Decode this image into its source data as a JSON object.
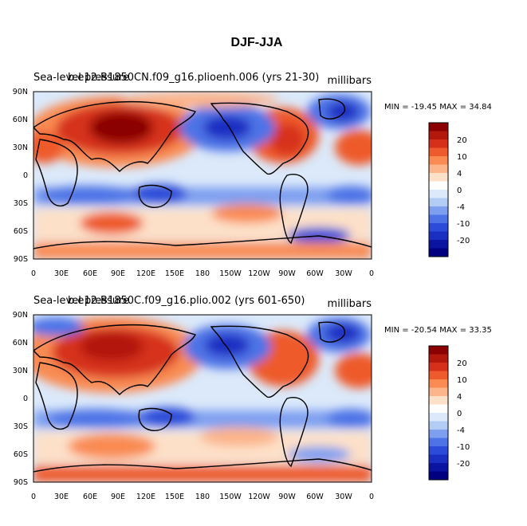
{
  "title": "DJF-JJA",
  "units": "millibars",
  "panels": [
    {
      "left_title": "Sea-level pressure",
      "case_title": "b.e12.B1850CN.f09_g16.plioenh.006 (yrs 21-30)",
      "stats": "MIN = -19.45 MAX = 34.84"
    },
    {
      "left_title": "Sea-level pressure",
      "case_title": "b.e12.B1850C.f09_g16.plio.002 (yrs 601-650)",
      "stats": "MIN = -20.54 MAX = 33.35"
    }
  ],
  "lat_ticks": [
    "90N",
    "60N",
    "30N",
    "0",
    "30S",
    "60S",
    "90S"
  ],
  "lon_ticks": [
    "0",
    "30E",
    "60E",
    "90E",
    "120E",
    "150E",
    "180",
    "150W",
    "120W",
    "90W",
    "60W",
    "30W",
    "0"
  ],
  "colorbar": {
    "labels": [
      "20",
      "10",
      "4",
      "0",
      "-4",
      "-10",
      "-20"
    ],
    "colors": [
      "#8b0000",
      "#b2180b",
      "#d6301a",
      "#ee5a2c",
      "#f98b53",
      "#fcb48a",
      "#fde0c8",
      "#ffffff",
      "#dbe9fa",
      "#b3ccf5",
      "#7e9ff0",
      "#4d73e6",
      "#2b4bd8",
      "#1a2fc2",
      "#0a14a0",
      "#000080"
    ]
  }
}
